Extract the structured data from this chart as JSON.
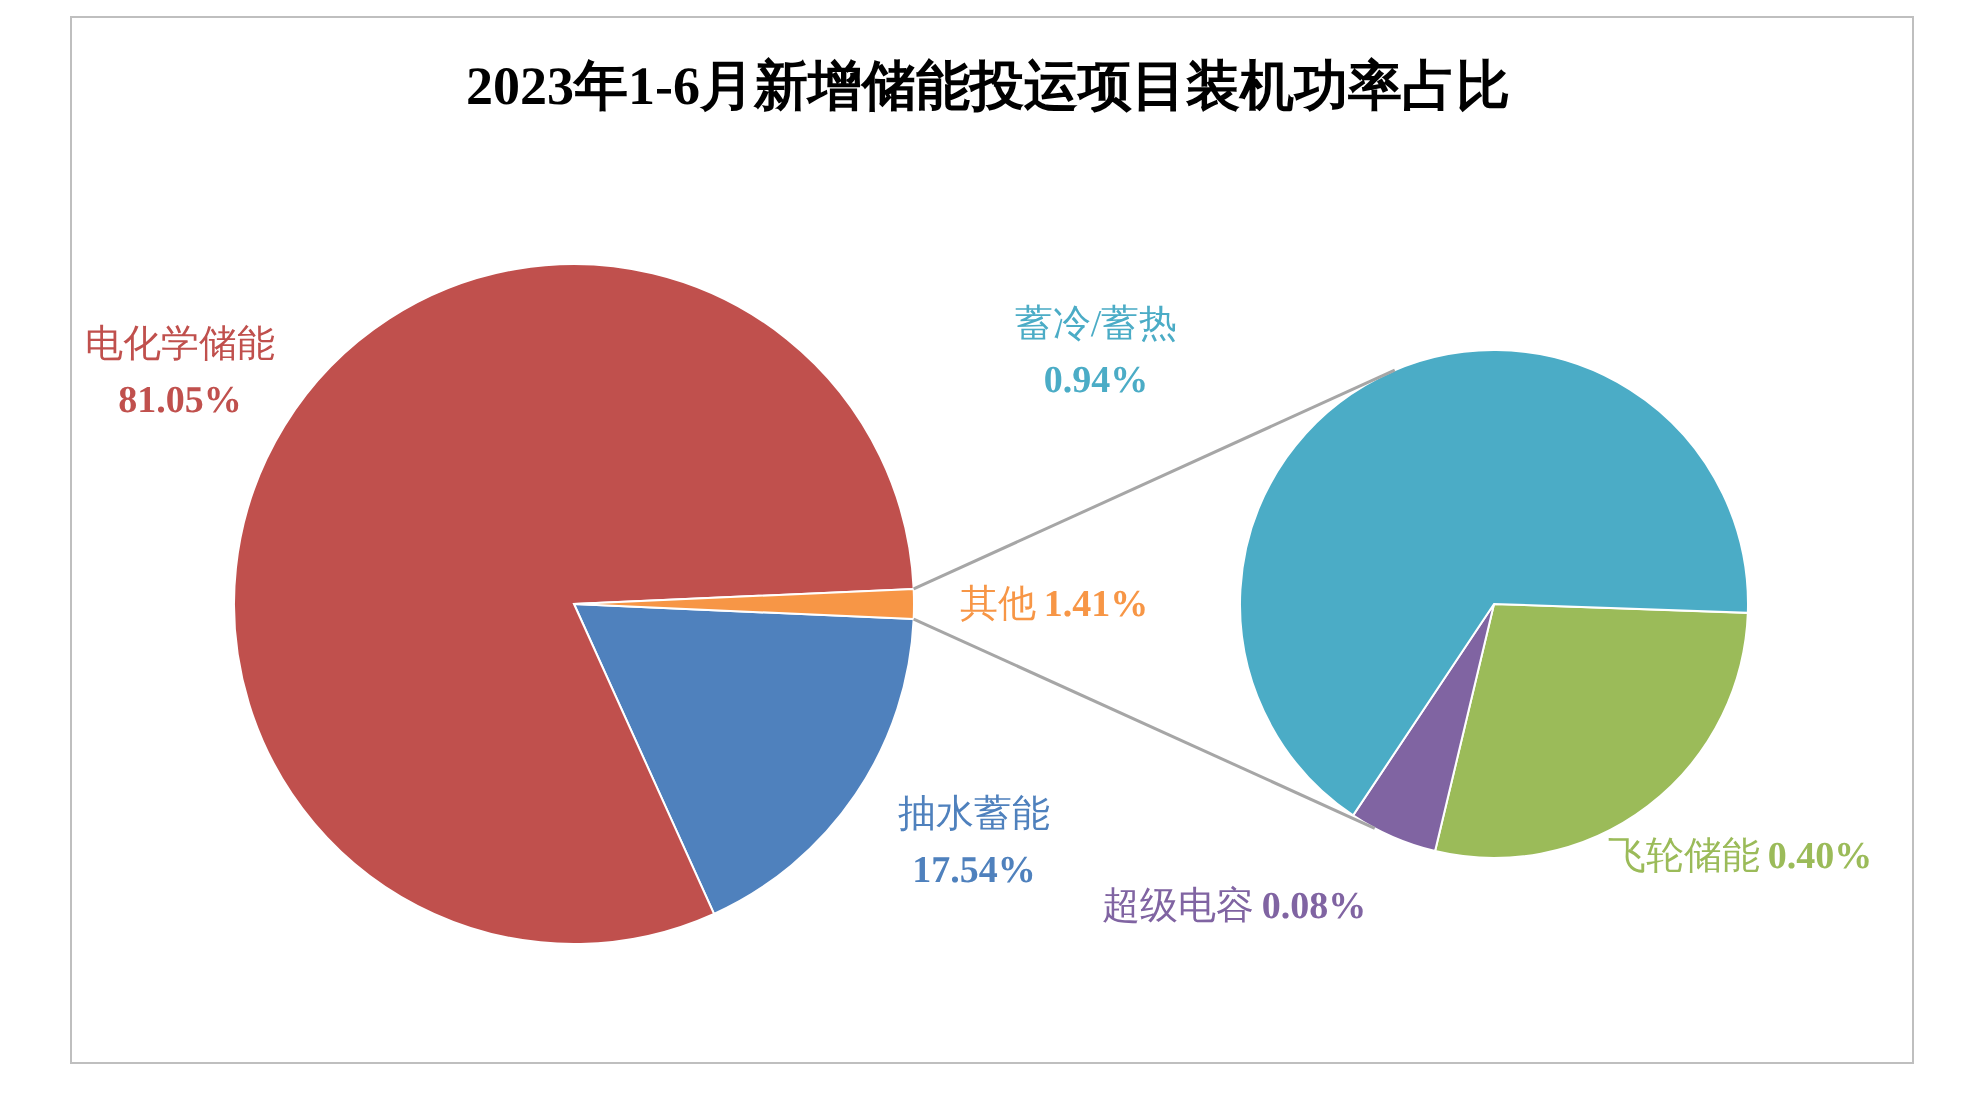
{
  "chart_data": [
    {
      "type": "pie",
      "title": "2023年1-6月新增储能投运项目装机功率占比",
      "categories": [
        "电化学储能",
        "抽水蓄能",
        "其他"
      ],
      "values": [
        81.05,
        17.54,
        1.41
      ],
      "value_labels": [
        "81.05%",
        "17.54%",
        "1.41%"
      ],
      "colors": [
        "#c0504d",
        "#4f81bd",
        "#f79646"
      ]
    },
    {
      "type": "pie",
      "categories": [
        "飞轮储能",
        "超级电容",
        "蓄冷/蓄热"
      ],
      "values": [
        0.4,
        0.08,
        0.94
      ],
      "value_labels": [
        "0.40%",
        "0.08%",
        "0.94%"
      ],
      "colors": [
        "#9bbb59",
        "#8064a2",
        "#4bacc6"
      ]
    }
  ]
}
